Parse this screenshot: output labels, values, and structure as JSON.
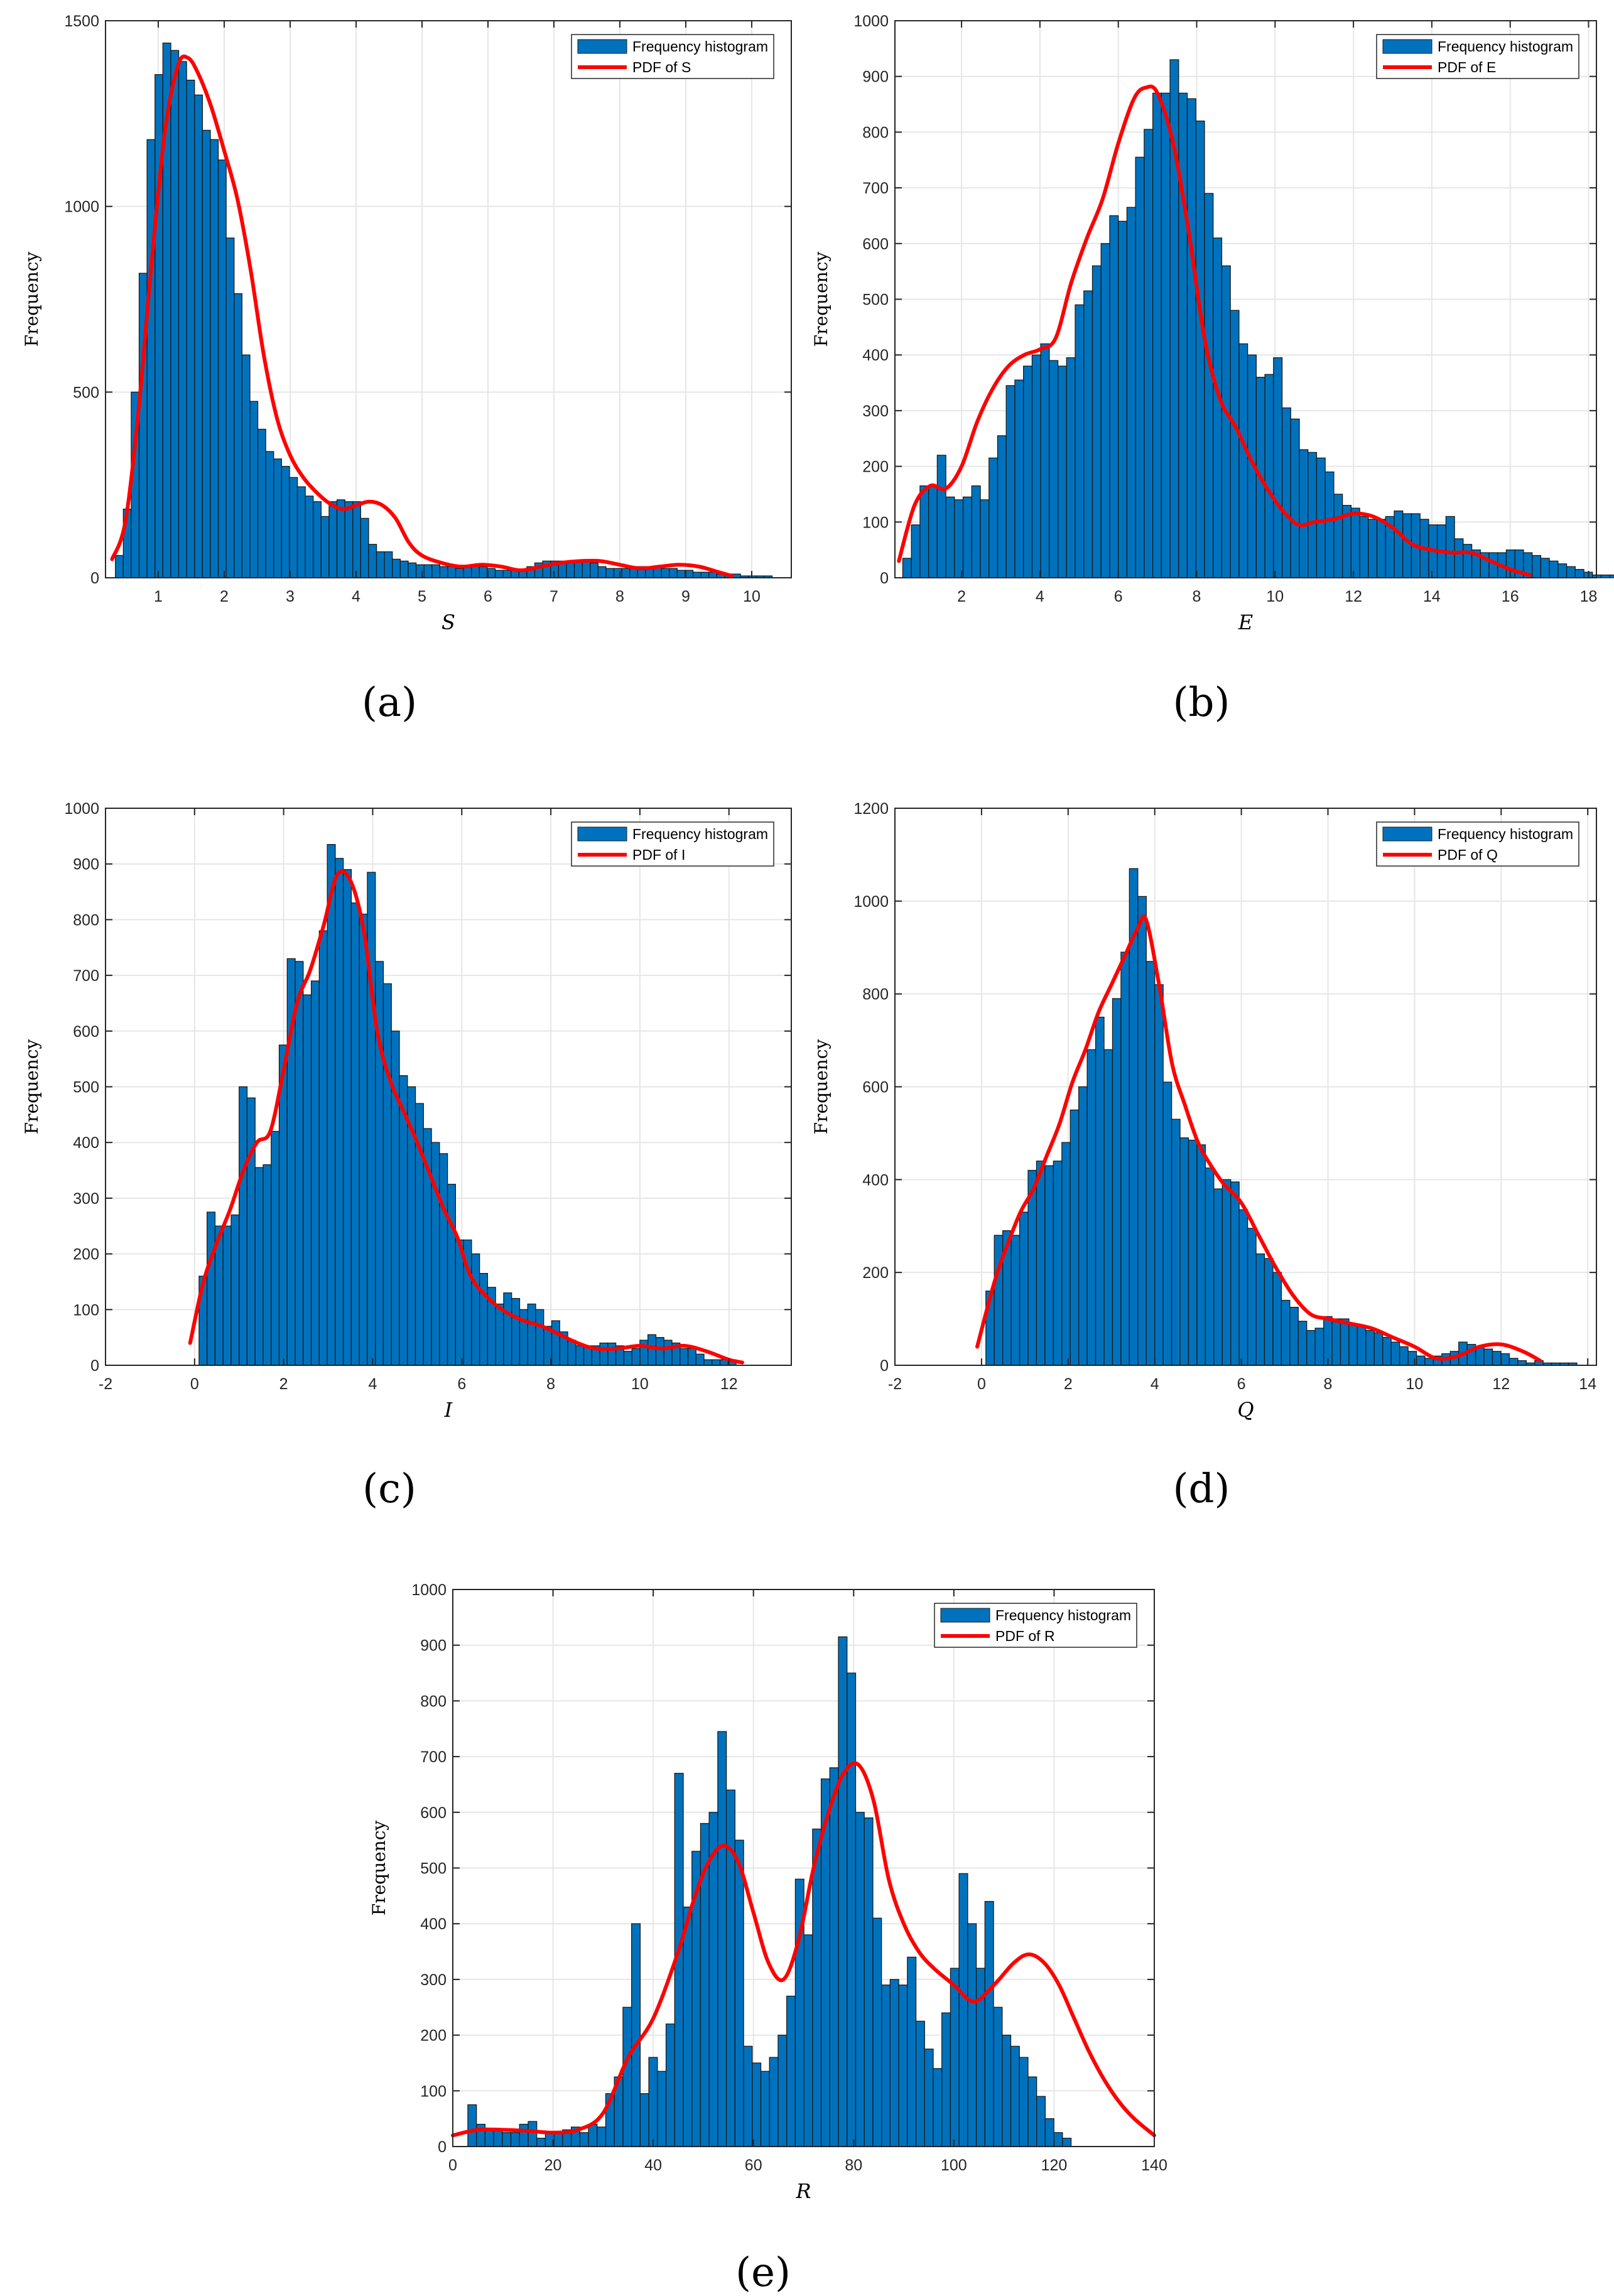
{
  "colors": {
    "bar_fill": "#0072BD",
    "bar_edge": "#1b1b1b",
    "pdf_line": "#FF0000",
    "grid": "#e6e6e6",
    "axis": "#262626"
  },
  "chart_data": [
    {
      "id": "a",
      "type": "bar",
      "caption": "(a)",
      "xlabel": "S",
      "ylabel": "Frequency",
      "xlim": [
        0.2,
        10.6
      ],
      "ylim": [
        0,
        1500
      ],
      "xticks": [
        1,
        2,
        3,
        4,
        5,
        6,
        7,
        8,
        9,
        10
      ],
      "yticks": [
        0,
        500,
        1000,
        1500
      ],
      "legend": {
        "position": "top-right",
        "entries": [
          "Frequency histogram",
          "PDF of S"
        ]
      },
      "series": [
        {
          "name": "Frequency histogram",
          "type": "histogram",
          "bin_start": 0.35,
          "bin_width": 0.12,
          "values": [
            60,
            185,
            500,
            820,
            1180,
            1355,
            1440,
            1420,
            1390,
            1340,
            1300,
            1205,
            1180,
            1125,
            915,
            765,
            600,
            475,
            400,
            340,
            320,
            300,
            270,
            245,
            220,
            205,
            165,
            205,
            210,
            205,
            205,
            160,
            90,
            70,
            70,
            50,
            45,
            40,
            35,
            35,
            35,
            30,
            30,
            25,
            30,
            30,
            30,
            25,
            20,
            20,
            20,
            20,
            30,
            40,
            45,
            45,
            45,
            45,
            45,
            45,
            40,
            30,
            25,
            25,
            25,
            30,
            30,
            30,
            30,
            25,
            25,
            20,
            20,
            15,
            15,
            15,
            10,
            10,
            10,
            5,
            5,
            5,
            5
          ]
        },
        {
          "name": "PDF of S",
          "type": "line",
          "x": [
            0.3,
            0.5,
            0.7,
            0.9,
            1.1,
            1.3,
            1.45,
            1.6,
            1.8,
            2.0,
            2.2,
            2.4,
            2.6,
            2.8,
            3.0,
            3.2,
            3.4,
            3.6,
            3.8,
            4.0,
            4.2,
            4.4,
            4.6,
            4.8,
            5.0,
            5.3,
            5.6,
            5.9,
            6.2,
            6.5,
            6.8,
            7.1,
            7.4,
            7.7,
            8.0,
            8.3,
            8.6,
            8.9,
            9.2,
            9.5,
            9.7
          ],
          "y": [
            50,
            150,
            450,
            850,
            1200,
            1380,
            1400,
            1360,
            1270,
            1150,
            1020,
            830,
            600,
            430,
            330,
            270,
            230,
            200,
            185,
            195,
            205,
            195,
            160,
            95,
            60,
            40,
            30,
            35,
            30,
            20,
            30,
            40,
            45,
            45,
            35,
            25,
            30,
            35,
            30,
            15,
            5
          ]
        }
      ]
    },
    {
      "id": "b",
      "type": "bar",
      "caption": "(b)",
      "xlabel": "E",
      "ylabel": "Frequency",
      "xlim": [
        0.3,
        18.2
      ],
      "ylim": [
        0,
        1000
      ],
      "xticks": [
        2,
        4,
        6,
        8,
        10,
        12,
        14,
        16,
        18
      ],
      "yticks": [
        0,
        100,
        200,
        300,
        400,
        500,
        600,
        700,
        800,
        900,
        1000
      ],
      "legend": {
        "position": "top-right",
        "entries": [
          "Frequency histogram",
          "PDF of E"
        ]
      },
      "series": [
        {
          "name": "Frequency histogram",
          "type": "histogram",
          "bin_start": 0.5,
          "bin_width": 0.22,
          "values": [
            35,
            95,
            165,
            165,
            220,
            145,
            140,
            145,
            165,
            140,
            215,
            255,
            345,
            355,
            380,
            400,
            420,
            390,
            380,
            395,
            490,
            515,
            560,
            600,
            650,
            640,
            665,
            755,
            805,
            870,
            870,
            930,
            870,
            860,
            820,
            690,
            610,
            560,
            480,
            420,
            400,
            360,
            365,
            395,
            305,
            285,
            230,
            225,
            215,
            190,
            150,
            130,
            125,
            110,
            105,
            105,
            110,
            120,
            115,
            115,
            105,
            95,
            95,
            110,
            70,
            60,
            50,
            45,
            45,
            45,
            50,
            50,
            45,
            40,
            35,
            30,
            25,
            20,
            15,
            10,
            5,
            5,
            5
          ]
        },
        {
          "name": "PDF of E",
          "type": "line",
          "x": [
            0.4,
            0.8,
            1.2,
            1.6,
            2.0,
            2.4,
            2.8,
            3.2,
            3.6,
            4.0,
            4.4,
            4.8,
            5.2,
            5.6,
            6.0,
            6.4,
            6.7,
            7.0,
            7.4,
            7.8,
            8.2,
            8.6,
            9.0,
            9.4,
            9.8,
            10.2,
            10.6,
            11.0,
            11.5,
            12.0,
            12.5,
            13.0,
            13.5,
            14.0,
            14.5,
            15.0,
            15.5,
            16.0,
            16.5
          ],
          "y": [
            30,
            130,
            165,
            160,
            200,
            280,
            340,
            380,
            400,
            410,
            430,
            530,
            610,
            680,
            780,
            860,
            880,
            870,
            780,
            620,
            430,
            320,
            270,
            210,
            160,
            120,
            95,
            100,
            105,
            115,
            110,
            90,
            60,
            50,
            45,
            45,
            30,
            15,
            5
          ]
        }
      ]
    },
    {
      "id": "c",
      "type": "bar",
      "caption": "(c)",
      "xlabel": "I",
      "ylabel": "Frequency",
      "xlim": [
        -2,
        13.4
      ],
      "ylim": [
        0,
        1000
      ],
      "xticks": [
        -2,
        0,
        2,
        4,
        6,
        8,
        10,
        12
      ],
      "yticks": [
        0,
        100,
        200,
        300,
        400,
        500,
        600,
        700,
        800,
        900,
        1000
      ],
      "legend": {
        "position": "top-right",
        "entries": [
          "Frequency histogram",
          "PDF of I"
        ]
      },
      "series": [
        {
          "name": "Frequency histogram",
          "type": "histogram",
          "bin_start": 0.1,
          "bin_width": 0.18,
          "values": [
            160,
            275,
            250,
            250,
            270,
            500,
            480,
            355,
            360,
            420,
            575,
            730,
            725,
            665,
            690,
            780,
            935,
            910,
            890,
            830,
            810,
            885,
            725,
            685,
            600,
            520,
            500,
            470,
            425,
            400,
            380,
            325,
            225,
            225,
            200,
            165,
            140,
            110,
            130,
            120,
            100,
            110,
            100,
            70,
            80,
            60,
            45,
            35,
            35,
            35,
            40,
            40,
            35,
            25,
            30,
            45,
            55,
            50,
            45,
            40,
            30,
            30,
            20,
            10,
            10,
            10,
            10
          ]
        },
        {
          "name": "PDF of I",
          "type": "line",
          "x": [
            -0.1,
            0.2,
            0.5,
            0.8,
            1.1,
            1.4,
            1.7,
            2.0,
            2.3,
            2.6,
            2.9,
            3.2,
            3.5,
            3.8,
            4.1,
            4.4,
            4.7,
            5.0,
            5.3,
            5.6,
            5.9,
            6.2,
            6.6,
            7.0,
            7.4,
            7.8,
            8.2,
            8.6,
            9.0,
            9.5,
            10.0,
            10.5,
            11.0,
            11.5,
            12.0,
            12.3
          ],
          "y": [
            40,
            150,
            220,
            280,
            350,
            400,
            420,
            530,
            650,
            710,
            790,
            880,
            870,
            780,
            600,
            510,
            455,
            400,
            340,
            280,
            230,
            160,
            120,
            95,
            80,
            70,
            55,
            40,
            30,
            30,
            35,
            30,
            35,
            25,
            10,
            5
          ]
        }
      ]
    },
    {
      "id": "d",
      "type": "bar",
      "caption": "(d)",
      "xlabel": "Q",
      "ylabel": "Frequency",
      "xlim": [
        -2,
        14.2
      ],
      "ylim": [
        0,
        1200
      ],
      "xticks": [
        -2,
        0,
        2,
        4,
        6,
        8,
        10,
        12,
        14
      ],
      "yticks": [
        0,
        200,
        400,
        600,
        800,
        1000,
        1200
      ],
      "legend": {
        "position": "top-right",
        "entries": [
          "Frequency histogram",
          "PDF of Q"
        ]
      },
      "series": [
        {
          "name": "Frequency histogram",
          "type": "histogram",
          "bin_start": 0.1,
          "bin_width": 0.195,
          "values": [
            160,
            280,
            290,
            280,
            330,
            420,
            440,
            430,
            440,
            480,
            550,
            600,
            680,
            750,
            680,
            790,
            890,
            1070,
            1010,
            870,
            820,
            610,
            530,
            490,
            485,
            475,
            425,
            380,
            400,
            395,
            335,
            295,
            240,
            230,
            200,
            140,
            125,
            95,
            75,
            80,
            105,
            100,
            100,
            90,
            85,
            75,
            70,
            60,
            50,
            40,
            30,
            20,
            15,
            20,
            25,
            30,
            50,
            45,
            40,
            35,
            30,
            25,
            15,
            10,
            5,
            10,
            5,
            5,
            5,
            5
          ]
        },
        {
          "name": "PDF of Q",
          "type": "line",
          "x": [
            -0.1,
            0.3,
            0.6,
            0.9,
            1.2,
            1.5,
            1.8,
            2.1,
            2.4,
            2.7,
            3.0,
            3.3,
            3.6,
            3.8,
            4.1,
            4.4,
            4.7,
            5.0,
            5.3,
            5.6,
            6.0,
            6.4,
            6.8,
            7.2,
            7.6,
            8.0,
            8.5,
            9.0,
            9.5,
            10.0,
            10.5,
            11.0,
            11.5,
            12.0,
            12.5,
            12.9
          ],
          "y": [
            40,
            180,
            260,
            330,
            380,
            450,
            520,
            610,
            680,
            760,
            820,
            880,
            940,
            960,
            820,
            650,
            560,
            480,
            430,
            390,
            350,
            280,
            210,
            150,
            110,
            100,
            90,
            80,
            60,
            40,
            15,
            20,
            40,
            45,
            30,
            10
          ]
        }
      ]
    },
    {
      "id": "e",
      "type": "bar",
      "caption": "(e)",
      "xlabel": "R",
      "ylabel": "Frequency",
      "xlim": [
        0,
        140
      ],
      "ylim": [
        0,
        1000
      ],
      "xticks": [
        0,
        20,
        40,
        60,
        80,
        100,
        120,
        140
      ],
      "yticks": [
        0,
        100,
        200,
        300,
        400,
        500,
        600,
        700,
        800,
        900,
        1000
      ],
      "legend": {
        "position": "top-right",
        "entries": [
          "Frequency histogram",
          "PDF of R"
        ]
      },
      "series": [
        {
          "name": "Frequency histogram",
          "type": "histogram",
          "bin_start": 3,
          "bin_width": 1.72,
          "values": [
            75,
            40,
            30,
            30,
            25,
            25,
            40,
            45,
            15,
            25,
            25,
            30,
            35,
            25,
            40,
            35,
            95,
            125,
            250,
            400,
            95,
            160,
            135,
            220,
            670,
            430,
            530,
            580,
            600,
            745,
            640,
            550,
            180,
            150,
            135,
            160,
            200,
            270,
            480,
            380,
            570,
            660,
            680,
            915,
            850,
            600,
            590,
            410,
            290,
            300,
            290,
            340,
            225,
            175,
            140,
            240,
            320,
            490,
            400,
            320,
            440,
            250,
            200,
            180,
            160,
            125,
            90,
            50,
            25,
            15
          ]
        },
        {
          "name": "PDF of R",
          "type": "line",
          "x": [
            0,
            5,
            10,
            15,
            20,
            25,
            30,
            35,
            40,
            45,
            48,
            51,
            54,
            57,
            60,
            63,
            66,
            69,
            72,
            75,
            78,
            81,
            84,
            87,
            90,
            93,
            96,
            100,
            104,
            108,
            112,
            115,
            118,
            121,
            124,
            127,
            130,
            133,
            136,
            140
          ],
          "y": [
            20,
            30,
            30,
            28,
            25,
            30,
            60,
            160,
            230,
            350,
            440,
            510,
            540,
            510,
            420,
            330,
            300,
            370,
            500,
            600,
            670,
            685,
            620,
            480,
            400,
            350,
            320,
            290,
            260,
            290,
            330,
            345,
            330,
            290,
            230,
            170,
            120,
            80,
            50,
            20
          ]
        }
      ]
    }
  ]
}
